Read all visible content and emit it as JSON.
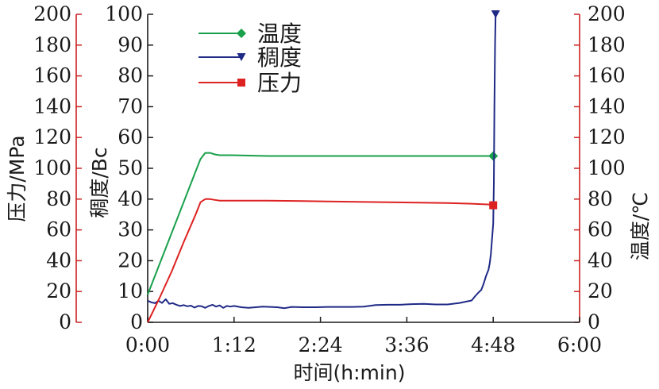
{
  "chart_data": {
    "type": "line",
    "xlabel": "时间(h:min)",
    "x_ticks": [
      "0:00",
      "1:12",
      "2:24",
      "3:36",
      "4:48",
      "6:00"
    ],
    "xlim_minutes": [
      0,
      360
    ],
    "y_axes": {
      "pressure": {
        "label": "压力/MPa",
        "ticks": [
          "0",
          "20",
          "40",
          "60",
          "80",
          "100",
          "120",
          "140",
          "160",
          "180",
          "200"
        ],
        "ylim": [
          0,
          200
        ],
        "color": "#cc2222"
      },
      "consistency": {
        "label": "稠度/Bc",
        "ticks": [
          "0",
          "10",
          "20",
          "30",
          "40",
          "50",
          "60",
          "70",
          "80",
          "90",
          "100"
        ],
        "ylim": [
          0,
          100
        ],
        "color": "#1a1a1a"
      },
      "temperature": {
        "label": "温度/℃",
        "ticks": [
          "0",
          "20",
          "40",
          "60",
          "80",
          "100",
          "120",
          "140",
          "160",
          "180",
          "200"
        ],
        "ylim": [
          0,
          200
        ],
        "color": "#cc2222"
      }
    },
    "legend_placement": "top-left",
    "series": [
      {
        "name": "温度",
        "axis": "temperature",
        "color": "#19a04b",
        "marker": "diamond",
        "x": [
          0,
          10,
          20,
          30,
          40,
          44,
          48,
          52,
          56,
          60,
          70,
          100,
          150,
          200,
          250,
          288
        ],
        "y": [
          18,
          38,
          58,
          78,
          98,
          106,
          110,
          110,
          109,
          108.5,
          108.5,
          108,
          108,
          108,
          108,
          108
        ]
      },
      {
        "name": "稠度",
        "axis": "consistency",
        "color": "#1f2a86",
        "marker": "triangle-down",
        "x": [
          0,
          3,
          6,
          9,
          12,
          15,
          18,
          21,
          24,
          27,
          30,
          33,
          36,
          39,
          42,
          45,
          48,
          51,
          54,
          57,
          60,
          63,
          66,
          69,
          72,
          78,
          84,
          90,
          96,
          102,
          108,
          114,
          120,
          130,
          140,
          150,
          160,
          170,
          180,
          190,
          200,
          210,
          220,
          230,
          240,
          250,
          260,
          270,
          273,
          276,
          278,
          280,
          282,
          284,
          285,
          286,
          287,
          288,
          288.5,
          289,
          289.5,
          290
        ],
        "y": [
          7,
          6.5,
          6.2,
          7,
          6.3,
          7.5,
          6,
          6.2,
          5.7,
          5.3,
          5.6,
          5.2,
          5.4,
          4.8,
          5.3,
          5.2,
          4.7,
          5.3,
          5.7,
          5.1,
          5.5,
          4.7,
          5.3,
          5.1,
          5.3,
          4.9,
          4.7,
          4.9,
          5.1,
          5,
          4.9,
          4.6,
          5,
          4.9,
          4.9,
          5,
          5,
          5,
          5.1,
          5.6,
          5.7,
          5.7,
          5.9,
          6,
          5.8,
          5.8,
          6.3,
          7.1,
          8.5,
          9.8,
          10.5,
          12.5,
          15,
          17,
          19,
          22,
          27,
          32,
          45,
          70,
          90,
          100
        ]
      },
      {
        "name": "压力",
        "axis": "pressure",
        "color": "#dd2222",
        "marker": "square",
        "x": [
          0,
          10,
          20,
          30,
          40,
          44,
          48,
          52,
          56,
          60,
          70,
          100,
          150,
          200,
          250,
          270,
          285,
          288
        ],
        "y": [
          0,
          16,
          33,
          52,
          70,
          78,
          80,
          80,
          79.5,
          79,
          79,
          79,
          78.5,
          78,
          77.5,
          77,
          76.5,
          76
        ]
      }
    ]
  }
}
